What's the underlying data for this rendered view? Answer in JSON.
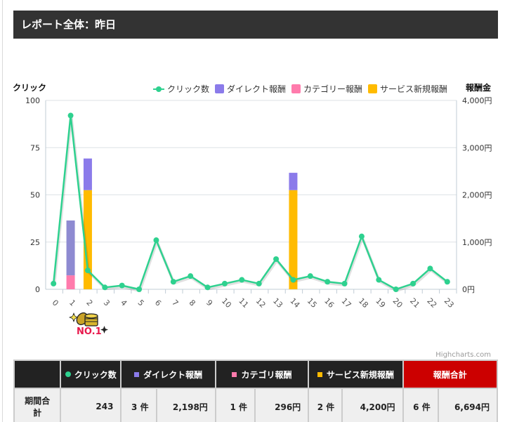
{
  "header": {
    "title": "レポート全体：昨日"
  },
  "chart_data": {
    "type": "bar",
    "title": "",
    "xlabel": "",
    "ylabel": "クリック",
    "y2label": "報酬金",
    "categories": [
      "0",
      "1",
      "2",
      "3",
      "4",
      "5",
      "6",
      "7",
      "8",
      "9",
      "10",
      "11",
      "12",
      "13",
      "14",
      "15",
      "16",
      "17",
      "18",
      "19",
      "20",
      "21",
      "22",
      "23"
    ],
    "ylim": [
      0,
      100
    ],
    "y2lim": [
      0,
      4000
    ],
    "yticks": [
      "0",
      "25",
      "50",
      "75",
      "100"
    ],
    "y2ticks": [
      "0円",
      "1,000円",
      "2,000円",
      "3,000円",
      "4,000円"
    ],
    "grid": true,
    "legend_position": "top-right",
    "series": [
      {
        "name": "クリック数",
        "type": "line",
        "axis": "left",
        "color": "#2ed18f",
        "values": [
          3,
          92,
          10,
          1,
          2,
          0,
          26,
          4,
          7,
          1,
          3,
          5,
          3,
          16,
          5,
          7,
          4,
          3,
          28,
          5,
          0,
          3,
          11,
          4
        ]
      },
      {
        "name": "ダイレクト報酬",
        "type": "bar",
        "stack": true,
        "axis": "right",
        "color": "#8b7bea",
        "values": [
          0,
          1161,
          670,
          0,
          0,
          0,
          0,
          0,
          0,
          0,
          0,
          0,
          0,
          0,
          367,
          0,
          0,
          0,
          0,
          0,
          0,
          0,
          0,
          0
        ]
      },
      {
        "name": "カテゴリー報酬",
        "type": "bar",
        "stack": true,
        "axis": "right",
        "color": "#ff7bac",
        "values": [
          0,
          296,
          0,
          0,
          0,
          0,
          0,
          0,
          0,
          0,
          0,
          0,
          0,
          0,
          0,
          0,
          0,
          0,
          0,
          0,
          0,
          0,
          0,
          0
        ]
      },
      {
        "name": "サービス新規報酬",
        "type": "bar",
        "stack": true,
        "axis": "right",
        "color": "#ffbb00",
        "values": [
          0,
          0,
          2100,
          0,
          0,
          0,
          0,
          0,
          0,
          0,
          0,
          0,
          0,
          0,
          2100,
          0,
          0,
          0,
          0,
          0,
          0,
          0,
          0,
          0
        ]
      }
    ],
    "annotations": [
      {
        "x": "1",
        "label": "NO.1",
        "kind": "badge-icon"
      }
    ]
  },
  "chart": {
    "y_axis_title": "クリック",
    "y2_axis_title": "報酬金",
    "legend": [
      {
        "label": "クリック数",
        "color": "#2ed18f",
        "kind": "line"
      },
      {
        "label": "ダイレクト報酬",
        "color": "#8b7bea",
        "kind": "box"
      },
      {
        "label": "カテゴリー報酬",
        "color": "#ff7bac",
        "kind": "box"
      },
      {
        "label": "サービス新規報酬",
        "color": "#ffbb00",
        "kind": "box"
      }
    ],
    "credit": "Highcharts.com",
    "badge_label": "NO.1"
  },
  "table": {
    "headers": [
      {
        "label": "",
        "marker": ""
      },
      {
        "label": "クリック数",
        "marker": "dot",
        "color": "#2ed18f"
      },
      {
        "label": "ダイレクト報酬",
        "marker": "square",
        "color": "#8b7bea"
      },
      {
        "label": "カテゴリ報酬",
        "marker": "square",
        "color": "#ff7bac"
      },
      {
        "label": "サービス新規報酬",
        "marker": "square",
        "color": "#ffbb00"
      },
      {
        "label": "報酬合計",
        "marker": "",
        "color": "#cc0000"
      }
    ],
    "row": {
      "label": "期間合計",
      "clicks": "243",
      "direct_count": "3 件",
      "direct_amount": "2,198円",
      "category_count": "1 件",
      "category_amount": "296円",
      "service_count": "2 件",
      "service_amount": "4,200円",
      "total_count": "6 件",
      "total_amount": "6,694円"
    }
  }
}
